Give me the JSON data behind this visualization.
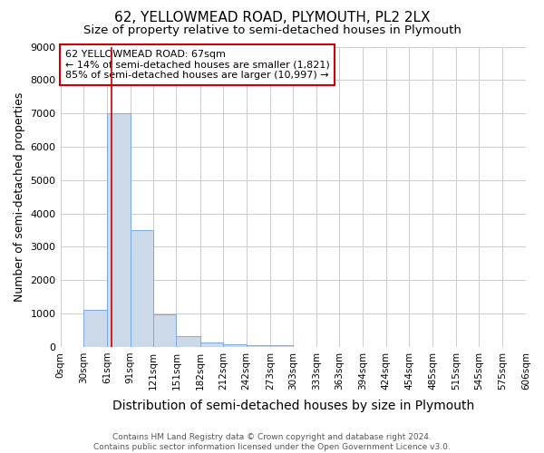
{
  "title": "62, YELLOWMEAD ROAD, PLYMOUTH, PL2 2LX",
  "subtitle": "Size of property relative to semi-detached houses in Plymouth",
  "xlabel": "Distribution of semi-detached houses by size in Plymouth",
  "ylabel": "Number of semi-detached properties",
  "bin_edges": [
    0,
    30,
    61,
    91,
    121,
    151,
    182,
    212,
    242,
    273,
    303,
    333,
    363,
    394,
    424,
    454,
    485,
    515,
    545,
    575,
    606
  ],
  "bar_heights": [
    0,
    1100,
    7000,
    3500,
    970,
    320,
    130,
    80,
    50,
    60,
    0,
    0,
    0,
    0,
    0,
    0,
    0,
    0,
    0,
    0
  ],
  "bar_color": "#ccd9e8",
  "bar_edgecolor": "#7aabe0",
  "property_size": 67,
  "red_line_color": "#cc0000",
  "annotation_line1": "62 YELLOWMEAD ROAD: 67sqm",
  "annotation_line2": "← 14% of semi-detached houses are smaller (1,821)",
  "annotation_line3": "85% of semi-detached houses are larger (10,997) →",
  "annotation_box_color": "#cc0000",
  "ylim": [
    0,
    9000
  ],
  "yticks": [
    0,
    1000,
    2000,
    3000,
    4000,
    5000,
    6000,
    7000,
    8000,
    9000
  ],
  "footnote": "Contains HM Land Registry data © Crown copyright and database right 2024.\nContains public sector information licensed under the Open Government Licence v3.0.",
  "grid_color": "#cccccc",
  "background_color": "#ffffff",
  "title_fontsize": 11,
  "subtitle_fontsize": 9.5,
  "tick_label_fontsize": 7.5,
  "ylabel_fontsize": 9,
  "xlabel_fontsize": 10,
  "annotation_fontsize": 8,
  "footnote_fontsize": 6.5
}
